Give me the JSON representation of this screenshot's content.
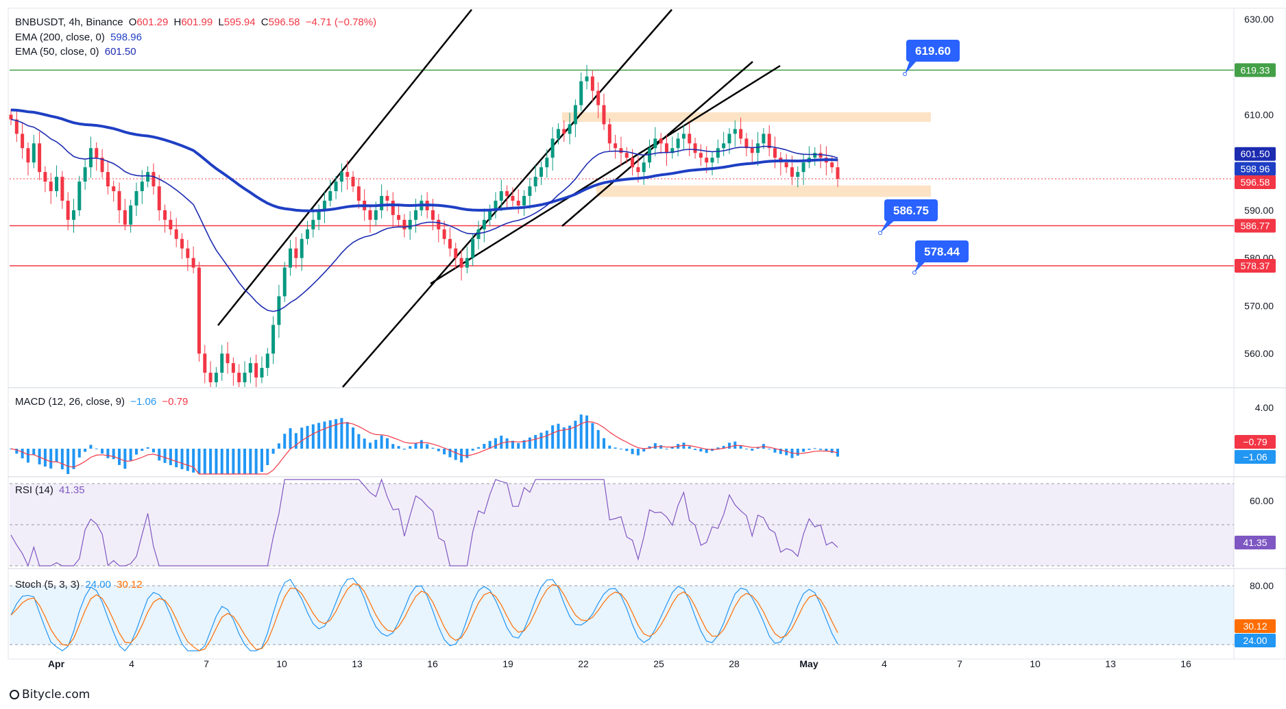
{
  "header": {
    "symbol": "BNBUSDT, 4h, Binance",
    "o_label": "O",
    "o": "601.29",
    "h_label": "H",
    "h": "601.99",
    "l_label": "L",
    "l": "595.94",
    "c_label": "C",
    "c": "596.58",
    "change": "−4.71 (−0.78%)"
  },
  "indicators": {
    "ema200": {
      "label": "EMA (200, close, 0)",
      "value": "598.96",
      "color": "#1e3fc4"
    },
    "ema50": {
      "label": "EMA (50, close, 0)",
      "value": "601.50",
      "color": "#1c2bb0"
    },
    "macd": {
      "label": "MACD (12, 26, close, 9)",
      "macd": "−1.06",
      "signal": "−0.79",
      "axis_tick": "4.00",
      "tag_signal": "−0.79",
      "tag_macd": "−1.06"
    },
    "rsi": {
      "label": "RSI (14)",
      "value": "41.35",
      "axis_tick": "60.00",
      "tag": "41.35",
      "color": "#7e57c2"
    },
    "stoch": {
      "label": "Stoch (5, 3, 3)",
      "k": "24.00",
      "d": "30.12",
      "axis_tick": "80.00",
      "tag_d": "30.12",
      "tag_k": "24.00",
      "k_color": "#2196f3",
      "d_color": "#ff6d00"
    }
  },
  "price_axis": [
    "630.00",
    "610.00",
    "590.00",
    "580.00",
    "570.00",
    "560.00"
  ],
  "price_tags": [
    {
      "label": "619.33",
      "color": "#43a047"
    },
    {
      "label": "601.50",
      "color": "#1c2bb0"
    },
    {
      "label": "598.96",
      "color": "#1e3fc4"
    },
    {
      "label": "596.58",
      "color": "#f23645"
    },
    {
      "label": "586.77",
      "color": "#f23645"
    },
    {
      "label": "578.37",
      "color": "#f23645"
    }
  ],
  "callouts": [
    "619.60",
    "586.75",
    "578.44"
  ],
  "time_axis": [
    "Apr",
    "4",
    "7",
    "10",
    "13",
    "16",
    "19",
    "22",
    "25",
    "28",
    "May",
    "4",
    "7",
    "10",
    "13",
    "16"
  ],
  "watermark": "Bitycle.com",
  "chart_data": {
    "type": "candlestick",
    "symbol": "BNBUSDT",
    "interval": "4h",
    "exchange": "Binance",
    "y_range": [
      553,
      632
    ],
    "last": {
      "open": 601.29,
      "high": 601.99,
      "low": 595.94,
      "close": 596.58,
      "change": -4.71,
      "change_pct": -0.78
    },
    "horizontal_levels": [
      {
        "price": 619.33,
        "color": "#43a047"
      },
      {
        "price": 586.77,
        "color": "#f23645"
      },
      {
        "price": 578.37,
        "color": "#f23645"
      }
    ],
    "zones": [
      {
        "from": 608.5,
        "to": 610.5,
        "color": "#fde3c5"
      },
      {
        "from": 592.8,
        "to": 595.2,
        "color": "#fde3c5"
      }
    ],
    "ema200_last": 598.96,
    "ema50_last": 601.5,
    "macd_last": -1.06,
    "macd_signal_last": -0.79,
    "rsi_last": 41.35,
    "stoch_k_last": 24.0,
    "stoch_d_last": 30.12,
    "date_ticks": [
      "Apr",
      "4",
      "7",
      "10",
      "13",
      "16",
      "19",
      "22",
      "25",
      "28",
      "May",
      "4",
      "7",
      "10",
      "13",
      "16"
    ],
    "candles_close_approx": [
      609,
      606,
      603,
      600,
      604,
      598,
      596,
      594,
      597,
      592,
      588,
      590,
      596,
      599,
      603,
      601,
      598,
      595,
      594,
      590,
      587,
      591,
      594,
      596,
      598,
      595,
      590,
      588,
      586,
      584,
      582,
      580,
      578,
      560,
      556,
      554,
      556,
      560,
      558,
      556,
      554,
      556,
      558,
      555,
      557,
      560,
      566,
      572,
      578,
      582,
      580,
      584,
      586,
      588,
      590,
      592,
      594,
      596,
      598,
      597,
      595,
      592,
      590,
      588,
      590,
      593,
      592,
      589,
      588,
      586,
      588,
      590,
      592,
      590,
      588,
      586,
      584,
      582,
      580,
      578,
      580,
      584,
      586,
      588,
      590,
      592,
      594,
      593,
      592,
      591,
      593,
      595,
      597,
      599,
      601,
      605,
      607,
      606,
      608,
      612,
      617,
      618,
      615,
      612,
      608,
      604,
      603,
      602,
      601,
      599,
      598,
      600,
      603,
      605,
      604,
      602,
      603,
      605,
      606,
      604,
      602,
      601,
      600,
      601,
      603,
      604,
      606,
      607,
      605,
      603,
      602,
      604,
      606,
      603,
      601,
      600,
      599,
      597,
      598,
      600,
      601,
      602,
      601,
      600,
      599,
      596.58
    ]
  }
}
